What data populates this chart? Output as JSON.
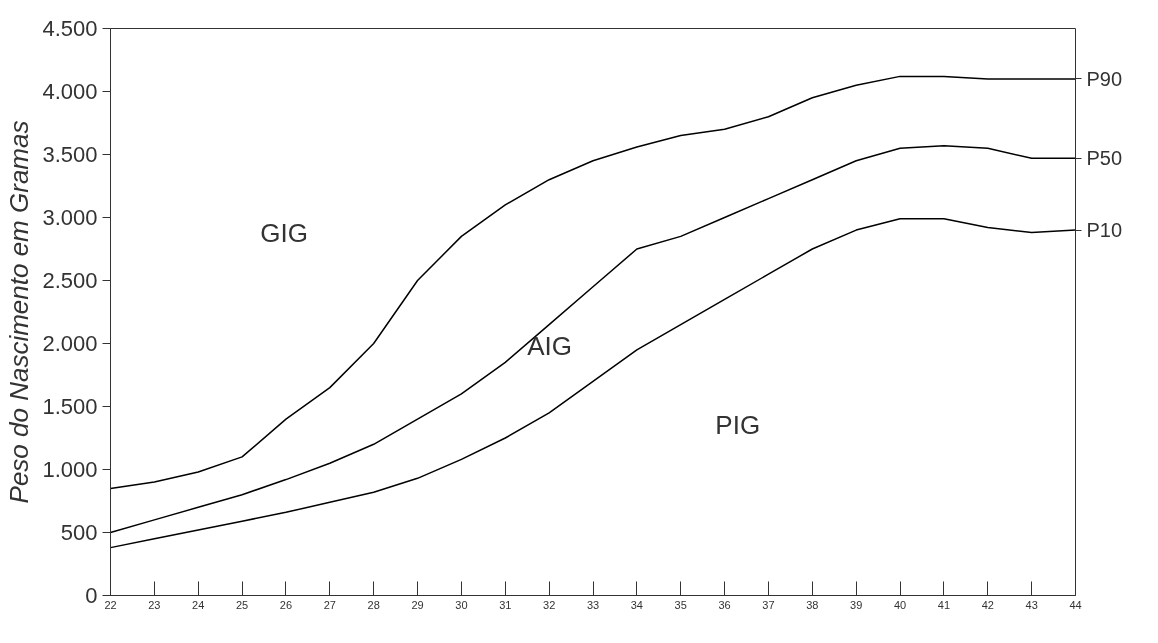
{
  "chart_data": {
    "type": "line",
    "ylabel": "Peso do Nascimento em Gramas",
    "x": [
      22,
      23,
      24,
      25,
      26,
      27,
      28,
      29,
      30,
      31,
      32,
      33,
      34,
      35,
      36,
      37,
      38,
      39,
      40,
      41,
      42,
      43,
      44
    ],
    "series": [
      {
        "name": "P90",
        "color": "#000000",
        "values": [
          850,
          900,
          980,
          1100,
          1400,
          1650,
          2000,
          2500,
          2850,
          3100,
          3300,
          3450,
          3560,
          3650,
          3700,
          3800,
          3950,
          4050,
          4120,
          4120,
          4100,
          4100,
          4100
        ]
      },
      {
        "name": "P50",
        "color": "#000000",
        "values": [
          500,
          600,
          700,
          800,
          920,
          1050,
          1200,
          1400,
          1600,
          1850,
          2150,
          2450,
          2750,
          2850,
          3000,
          3150,
          3300,
          3450,
          3550,
          3570,
          3550,
          3470,
          3470
        ]
      },
      {
        "name": "P10",
        "color": "#000000",
        "values": [
          380,
          450,
          520,
          590,
          660,
          740,
          820,
          930,
          1080,
          1250,
          1450,
          1700,
          1950,
          2150,
          2350,
          2550,
          2750,
          2900,
          2990,
          2990,
          2920,
          2880,
          2900
        ]
      }
    ],
    "annotations": [
      "GIG",
      "AIG",
      "PIG"
    ],
    "xlim": [
      22,
      44
    ],
    "xticks": [
      22,
      23,
      24,
      25,
      26,
      27,
      28,
      29,
      30,
      31,
      32,
      33,
      34,
      35,
      36,
      37,
      38,
      39,
      40,
      41,
      42,
      43,
      44
    ],
    "ylim": [
      0,
      4500
    ],
    "yticks": [
      0,
      {
        "value": 500,
        "label": "500"
      },
      {
        "value": 1000,
        "label": "1.000"
      },
      {
        "value": 1500,
        "label": "1.500"
      },
      {
        "value": 2000,
        "label": "2.000"
      },
      {
        "value": 2500,
        "label": "2.500"
      },
      {
        "value": 3000,
        "label": "3.000"
      },
      {
        "value": 3500,
        "label": "3.500"
      },
      {
        "value": 4000,
        "label": "4.000"
      },
      {
        "value": 4500,
        "label": "4.500"
      }
    ],
    "grid": false,
    "marker": "none",
    "line_style": "solid"
  }
}
